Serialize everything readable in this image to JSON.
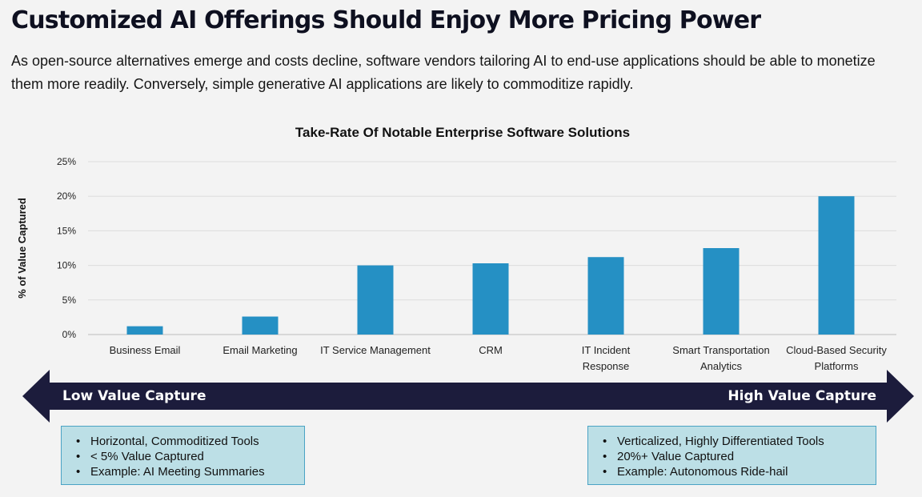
{
  "header": {
    "title": "Customized AI Offerings Should Enjoy More Pricing Power",
    "subtitle": "As open-source alternatives emerge and costs decline, software vendors tailoring AI to end-use applications should be able to monetize them more readily. Conversely, simple generative AI applications are likely to commoditize rapidly."
  },
  "chart_data": {
    "type": "bar",
    "title": "Take-Rate Of Notable Enterprise Software Solutions",
    "ylabel": "% of Value Captured",
    "xlabel": "",
    "ylim": [
      0,
      25
    ],
    "yticks": [
      "0%",
      "5%",
      "10%",
      "15%",
      "20%",
      "25%"
    ],
    "grid": true,
    "bar_color": "#2590c4",
    "categories": [
      [
        "Business Email"
      ],
      [
        "Email Marketing"
      ],
      [
        "IT Service Management"
      ],
      [
        "CRM"
      ],
      [
        "IT Incident",
        "Response"
      ],
      [
        "Smart Transportation",
        "Analytics"
      ],
      [
        "Cloud-Based Security",
        "Platforms"
      ]
    ],
    "values": [
      1.2,
      2.6,
      10.0,
      10.3,
      11.2,
      12.5,
      20.0
    ]
  },
  "arrow": {
    "left_label": "Low Value Capture",
    "right_label": "High Value Capture",
    "color": "#1c1c3c"
  },
  "boxes": {
    "left": {
      "items": [
        "Horizontal, Commoditized Tools",
        "< 5% Value Captured",
        "Example: AI Meeting Summaries"
      ]
    },
    "right": {
      "items": [
        "Verticalized, Highly Differentiated Tools",
        "20%+ Value Captured",
        "Example: Autonomous Ride-hail"
      ]
    }
  }
}
